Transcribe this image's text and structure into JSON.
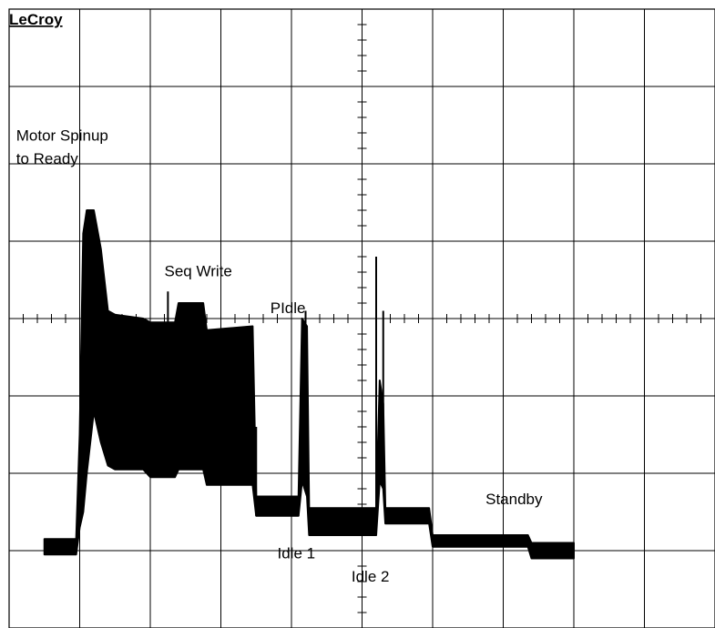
{
  "brand": "LeCroy",
  "colors": {
    "background": "#ffffff",
    "trace": "#000000",
    "grid": "#000000"
  },
  "chart_data": {
    "type": "line",
    "title": "",
    "xlabel": "",
    "ylabel": "",
    "grid": true,
    "divisions": {
      "x": 10,
      "y": 8
    },
    "xlim": [
      0,
      10
    ],
    "ylim": [
      -4,
      4
    ],
    "annotations": [
      {
        "text": "Motor Spinup",
        "x": 0.1,
        "y": 2.3
      },
      {
        "text": "to Ready",
        "x": 0.1,
        "y": 2.0
      },
      {
        "text": "Seq Write",
        "x": 2.2,
        "y": 0.55
      },
      {
        "text": "PIdle",
        "x": 3.7,
        "y": 0.07
      },
      {
        "text": "Idle 1",
        "x": 3.8,
        "y": -3.1
      },
      {
        "text": "Idle 2",
        "x": 4.85,
        "y": -3.4
      },
      {
        "text": "Standby",
        "x": 6.75,
        "y": -2.4
      }
    ],
    "envelope": [
      {
        "x": 0.5,
        "lo": -3.05,
        "hi": -2.85
      },
      {
        "x": 0.95,
        "lo": -3.05,
        "hi": -2.85
      },
      {
        "x": 1.0,
        "lo": -2.7,
        "hi": -1.5
      },
      {
        "x": 1.05,
        "lo": -2.5,
        "hi": 1.1
      },
      {
        "x": 1.1,
        "lo": -2.0,
        "hi": 1.4
      },
      {
        "x": 1.2,
        "lo": -1.2,
        "hi": 1.4
      },
      {
        "x": 1.3,
        "lo": -1.6,
        "hi": 0.9
      },
      {
        "x": 1.4,
        "lo": -1.9,
        "hi": 0.1
      },
      {
        "x": 1.5,
        "lo": -1.95,
        "hi": 0.05
      },
      {
        "x": 1.9,
        "lo": -1.95,
        "hi": 0.0
      },
      {
        "x": 2.0,
        "lo": -2.05,
        "hi": -0.05
      },
      {
        "x": 2.35,
        "lo": -2.05,
        "hi": -0.05
      },
      {
        "x": 2.4,
        "lo": -1.95,
        "hi": 0.2
      },
      {
        "x": 2.75,
        "lo": -1.95,
        "hi": 0.2
      },
      {
        "x": 2.8,
        "lo": -2.15,
        "hi": -0.15
      },
      {
        "x": 3.45,
        "lo": -2.15,
        "hi": -0.1
      },
      {
        "x": 3.5,
        "lo": -2.55,
        "hi": -2.3
      },
      {
        "x": 4.1,
        "lo": -2.55,
        "hi": -2.3
      },
      {
        "x": 4.15,
        "lo": -2.1,
        "hi": 0.0
      },
      {
        "x": 4.22,
        "lo": -2.3,
        "hi": -0.1
      },
      {
        "x": 4.25,
        "lo": -2.8,
        "hi": -2.45
      },
      {
        "x": 5.2,
        "lo": -2.8,
        "hi": -2.45
      },
      {
        "x": 5.25,
        "lo": -2.1,
        "hi": -0.8
      },
      {
        "x": 5.3,
        "lo": -2.2,
        "hi": -1.1
      },
      {
        "x": 5.33,
        "lo": -2.65,
        "hi": -2.45
      },
      {
        "x": 5.95,
        "lo": -2.65,
        "hi": -2.45
      },
      {
        "x": 6.0,
        "lo": -2.95,
        "hi": -2.8
      },
      {
        "x": 7.35,
        "lo": -2.95,
        "hi": -2.8
      },
      {
        "x": 7.4,
        "lo": -3.1,
        "hi": -2.9
      },
      {
        "x": 8.0,
        "lo": -3.1,
        "hi": -2.9
      }
    ],
    "spikes": [
      {
        "x": 1.1,
        "y": 1.4
      },
      {
        "x": 1.2,
        "y": 1.1
      },
      {
        "x": 2.25,
        "y": 0.35
      },
      {
        "x": 4.2,
        "y": 0.1
      },
      {
        "x": 5.2,
        "y": 0.8
      },
      {
        "x": 5.3,
        "y": 0.1
      },
      {
        "x": 3.5,
        "y": -1.4
      }
    ]
  }
}
